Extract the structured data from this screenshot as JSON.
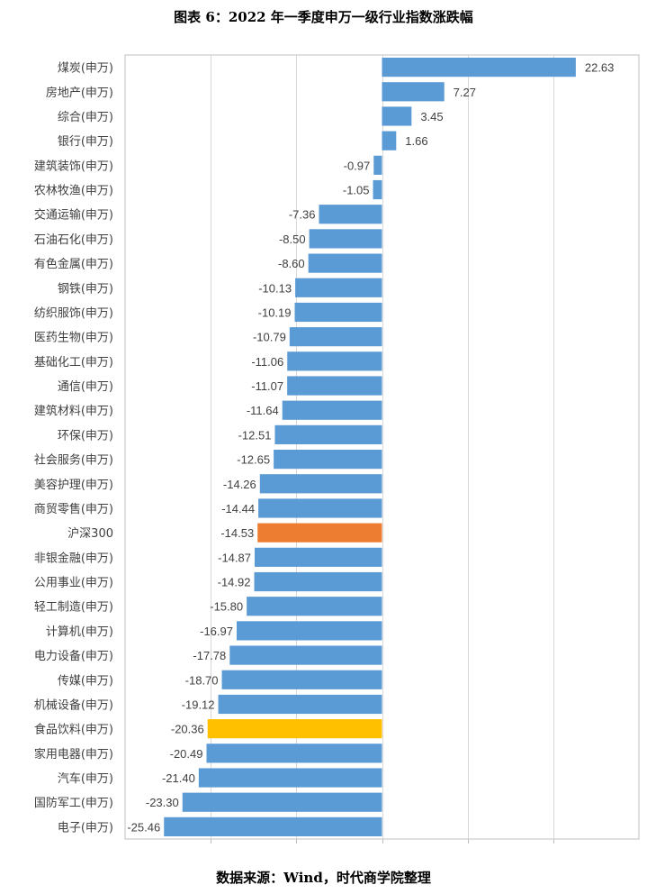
{
  "title": "图表 6：2022 年一季度申万一级行业指数涨跌幅",
  "source": "数据来源：Wind，时代商学院整理",
  "colors": {
    "default": "#5b9bd5",
    "hs300": "#ed7d31",
    "food": "#ffc000",
    "grid": "#d9d9d9",
    "border": "#bfbfbf"
  },
  "chart_data": {
    "type": "bar",
    "orientation": "horizontal",
    "xlim": [
      -30,
      30
    ],
    "grid": true,
    "legend": "none",
    "categories": [
      "煤炭(申万)",
      "房地产(申万)",
      "综合(申万)",
      "银行(申万)",
      "建筑装饰(申万)",
      "农林牧渔(申万)",
      "交通运输(申万)",
      "石油石化(申万)",
      "有色金属(申万)",
      "钢铁(申万)",
      "纺织服饰(申万)",
      "医药生物(申万)",
      "基础化工(申万)",
      "通信(申万)",
      "建筑材料(申万)",
      "环保(申万)",
      "社会服务(申万)",
      "美容护理(申万)",
      "商贸零售(申万)",
      "沪深300",
      "非银金融(申万)",
      "公用事业(申万)",
      "轻工制造(申万)",
      "计算机(申万)",
      "电力设备(申万)",
      "传媒(申万)",
      "机械设备(申万)",
      "食品饮料(申万)",
      "家用电器(申万)",
      "汽车(申万)",
      "国防军工(申万)",
      "电子(申万)"
    ],
    "values": [
      22.63,
      7.27,
      3.45,
      1.66,
      -0.97,
      -1.05,
      -7.36,
      -8.5,
      -8.6,
      -10.13,
      -10.19,
      -10.79,
      -11.06,
      -11.07,
      -11.64,
      -12.51,
      -12.65,
      -14.26,
      -14.44,
      -14.53,
      -14.87,
      -14.92,
      -15.8,
      -16.97,
      -17.78,
      -18.7,
      -19.12,
      -20.36,
      -20.49,
      -21.4,
      -23.3,
      -25.46
    ],
    "labels": [
      "22.63",
      "7.27",
      "3.45",
      "1.66",
      "-0.97",
      "-1.05",
      "-7.36",
      "-8.50",
      "-8.60",
      "-10.13",
      "-10.19",
      "-10.79",
      "-11.06",
      "-11.07",
      "-11.64",
      "-12.51",
      "-12.65",
      "-14.26",
      "-14.44",
      "-14.53",
      "-14.87",
      "-14.92",
      "-15.80",
      "-16.97",
      "-17.78",
      "-18.70",
      "-19.12",
      "-20.36",
      "-20.49",
      "-21.40",
      "-23.30",
      "-25.46"
    ],
    "highlights": {
      "沪深300": "hs300",
      "食品饮料(申万)": "food"
    }
  }
}
